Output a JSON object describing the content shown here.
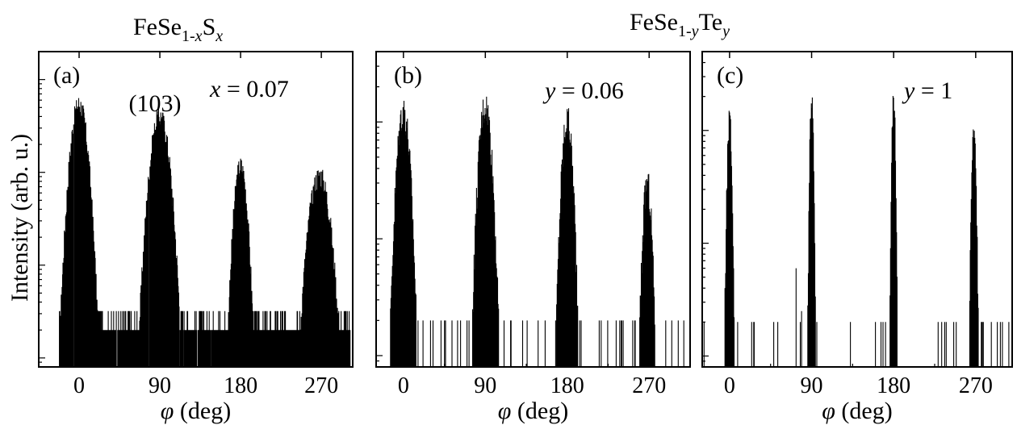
{
  "titles": {
    "left": {
      "base": "FeSe",
      "sub1": "1-",
      "subvar": "x",
      "tail": "S",
      "tailsub": "x"
    },
    "right": {
      "base": "FeSe",
      "sub1": "1-",
      "subvar": "y",
      "tail": "Te",
      "tailsub": "y"
    }
  },
  "ylabel": "Intensity (arb. u.)",
  "xlabel": {
    "symbol": "φ",
    "unit": " (deg)"
  },
  "colors": {
    "line": "#000000",
    "background": "#ffffff"
  },
  "chart_data": [
    {
      "type": "line",
      "panel": "(a)",
      "annotation": {
        "var": "x",
        "eq": " = 0.07"
      },
      "peak_label": "(103)",
      "xlabel": "φ (deg)",
      "ylabel": "Intensity (arb. u.)",
      "xlim": [
        -45,
        305
      ],
      "yscale": "log",
      "ylim": [
        0.8,
        2000
      ],
      "xticks": [
        0,
        90,
        180,
        270
      ],
      "noise_floor": 2,
      "noise_floor_range": [
        -20,
        300
      ],
      "peaks": [
        {
          "center": 0,
          "height": 700,
          "width": 9
        },
        {
          "center": 90,
          "height": 520,
          "width": 10
        },
        {
          "center": 180,
          "height": 150,
          "width": 7
        },
        {
          "center": 268,
          "height": 120,
          "width": 11
        }
      ]
    },
    {
      "type": "line",
      "panel": "(b)",
      "annotation": {
        "var": "y",
        "eq": " = 0.06"
      },
      "xlabel": "φ (deg)",
      "ylabel": "Intensity (arb. u.)",
      "xlim": [
        -30,
        315
      ],
      "yscale": "log",
      "ylim": [
        0.8,
        400
      ],
      "xticks": [
        0,
        90,
        180,
        270
      ],
      "noise_floor": 1,
      "peaks": [
        {
          "center": 0,
          "height": 170,
          "width": 7
        },
        {
          "center": 90,
          "height": 190,
          "width": 7
        },
        {
          "center": 180,
          "height": 140,
          "width": 6
        },
        {
          "center": 268,
          "height": 40,
          "width": 5
        }
      ]
    },
    {
      "type": "line",
      "panel": "(c)",
      "annotation": {
        "var": "y",
        "eq": " = 1"
      },
      "xlabel": "φ (deg)",
      "ylabel": "Intensity (arb. u.)",
      "xlim": [
        -30,
        310
      ],
      "yscale": "log",
      "ylim": [
        0.8,
        500
      ],
      "xticks": [
        0,
        90,
        180,
        270
      ],
      "noise_floor": 1,
      "peaks": [
        {
          "center": 0,
          "height": 160,
          "width": 2.5
        },
        {
          "center": 90,
          "height": 250,
          "width": 2
        },
        {
          "center": 180,
          "height": 240,
          "width": 2
        },
        {
          "center": 268,
          "height": 120,
          "width": 2.5
        }
      ],
      "minor_lines": [
        {
          "x": -5,
          "y": 4
        },
        {
          "x": 73,
          "y": 6
        },
        {
          "x": 79,
          "y": 2.5
        },
        {
          "x": 160,
          "y": 2
        }
      ]
    }
  ]
}
